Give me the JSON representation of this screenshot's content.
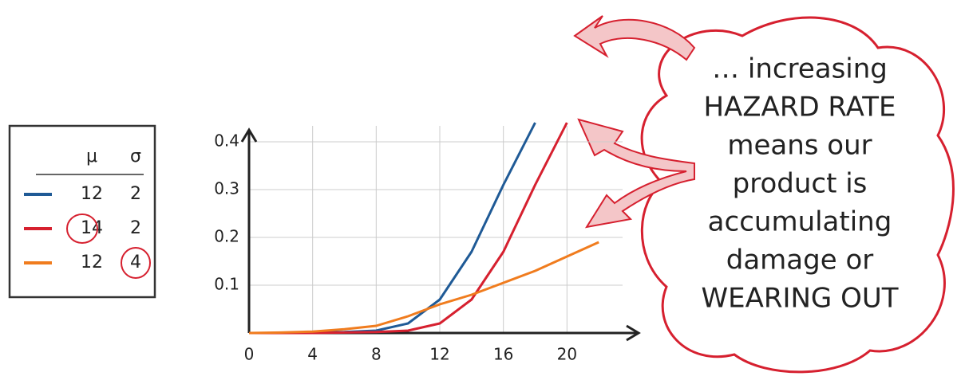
{
  "chart_data": {
    "type": "line",
    "x": [
      0,
      2,
      4,
      6,
      8,
      10,
      12,
      14,
      16,
      18,
      20,
      22
    ],
    "series": [
      {
        "color": "#1f5a96",
        "values": [
          0,
          0,
          0.001,
          0.002,
          0.005,
          0.02,
          0.07,
          0.17,
          0.31,
          0.44,
          null,
          null
        ]
      },
      {
        "color": "#d6202f",
        "values": [
          0,
          0,
          0,
          0.001,
          0.002,
          0.005,
          0.02,
          0.07,
          0.17,
          0.31,
          0.44,
          null
        ]
      },
      {
        "color": "#f07c1e",
        "values": [
          0,
          0.001,
          0.003,
          0.008,
          0.015,
          0.035,
          0.06,
          0.08,
          0.105,
          0.13,
          0.16,
          0.19
        ]
      }
    ],
    "xlim": [
      0,
      24
    ],
    "ylim": [
      0,
      0.45
    ],
    "xticks": [
      0,
      4,
      8,
      12,
      16,
      20
    ],
    "yticks": [
      0.1,
      0.2,
      0.3,
      0.4
    ],
    "grid": true,
    "legend_table": {
      "headers": [
        "μ",
        "σ"
      ],
      "rows": [
        [
          "12",
          "2"
        ],
        [
          "14",
          "2"
        ],
        [
          "12",
          "4"
        ]
      ]
    },
    "annotation": [
      {
        "text": "… increasing",
        "color": "#c8141e"
      },
      {
        "text": "HAZARD RATE",
        "color": "#555555"
      },
      {
        "text": "means our",
        "color": "#c8141e"
      },
      {
        "text": "product is",
        "color": "#c8141e"
      },
      {
        "text": "accumulating",
        "color": "#c8141e"
      },
      {
        "text": "damage or",
        "color": "#c8141e"
      },
      {
        "text": "WEARING OUT",
        "color": "#555555"
      }
    ]
  }
}
